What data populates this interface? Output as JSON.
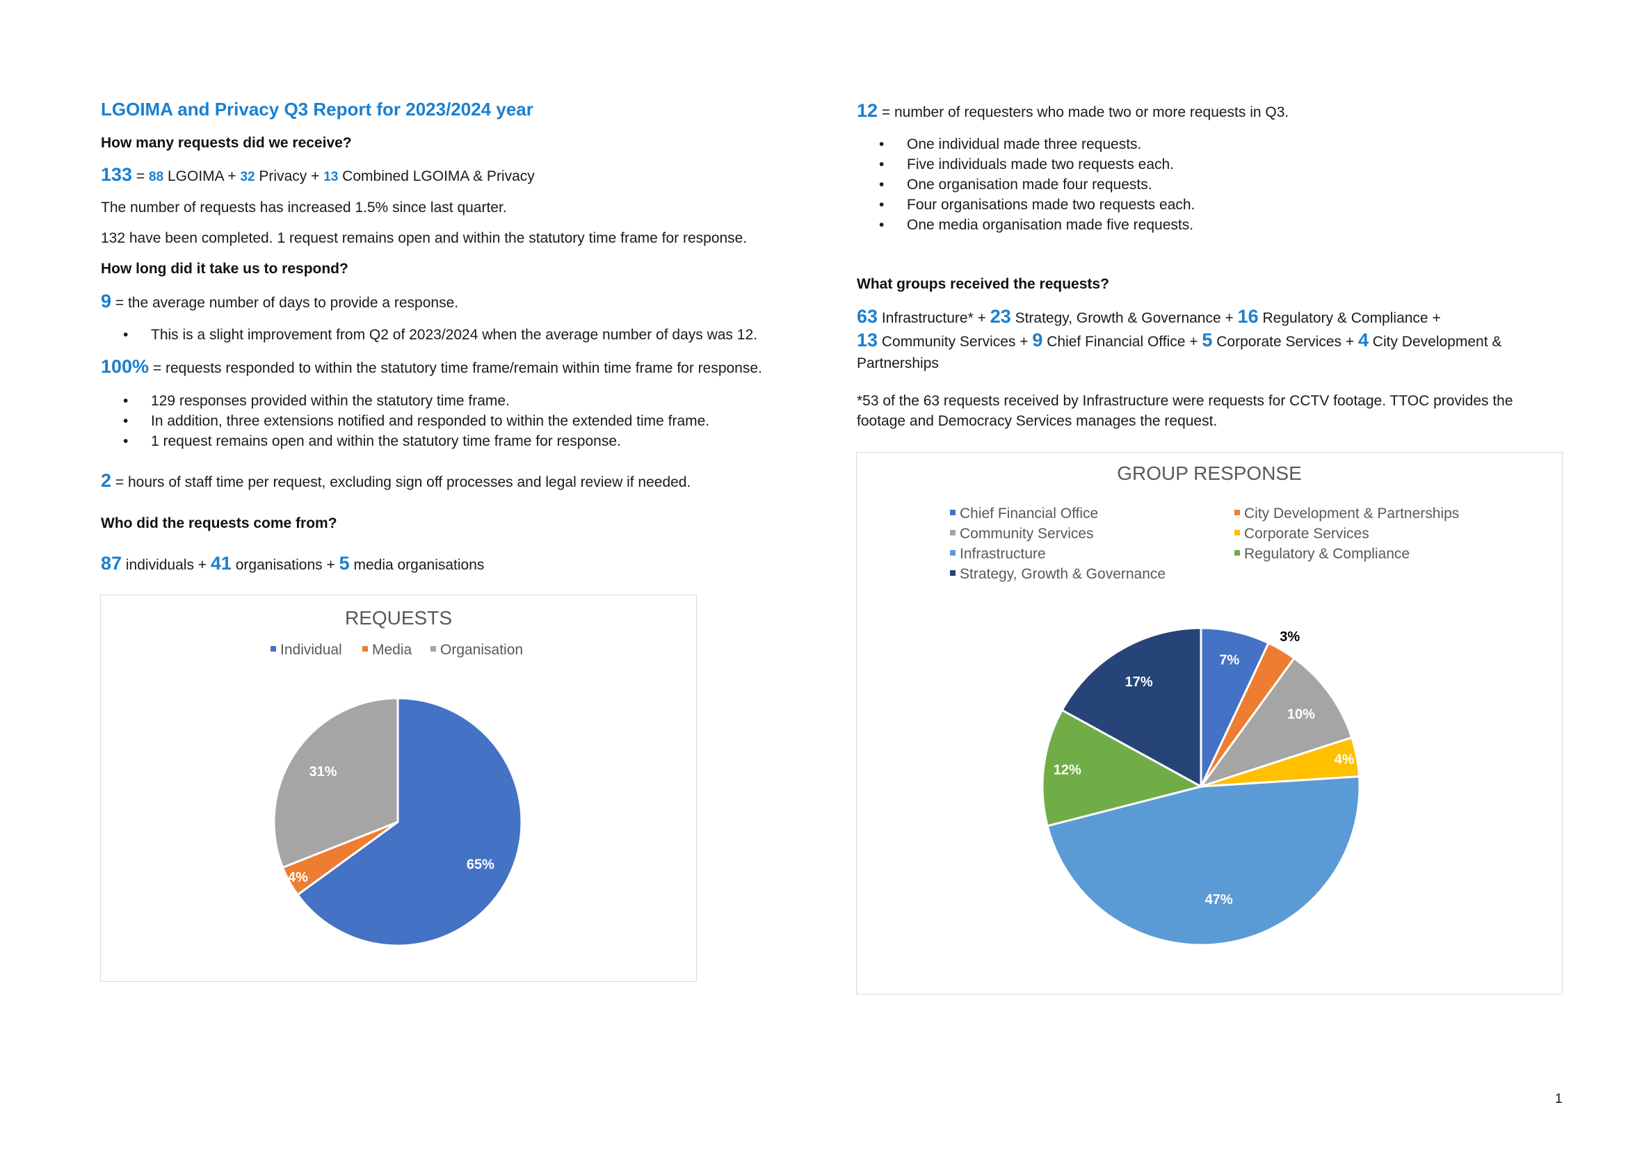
{
  "report_title": "LGOIMA and Privacy Q3 Report for 2023/2024 year",
  "q_received": {
    "heading": "How many requests did we receive?",
    "total": "133",
    "eq": " = ",
    "lgoima_n": "88",
    "lgoima_t": " LGOIMA + ",
    "privacy_n": "32",
    "privacy_t": " Privacy + ",
    "combined_n": "13",
    "combined_t": " Combined LGOIMA & Privacy",
    "increase_text": "The number of requests has increased 1.5% since last quarter.",
    "completed_text": "132 have been completed. 1 request remains open and within the statutory time frame for response."
  },
  "q_respond": {
    "heading": "How long did it take us to respond?",
    "avg_days_n": "9",
    "avg_days_t": " = the average number of days to provide a response.",
    "avg_bullets": [
      "This is a slight improvement from Q2 of 2023/2024 when the average number of days was 12."
    ],
    "pct_n": "100%",
    "pct_t": " = requests responded to within the statutory time frame/remain within time frame for response.",
    "pct_bullets": [
      "129 responses provided within the statutory time frame.",
      "In addition, three extensions notified and responded to within the extended time frame.",
      "1 request remains open and within the statutory time frame for response."
    ],
    "hours_n": "2",
    "hours_t": " = hours of staff time per request, excluding sign off processes and legal review if needed."
  },
  "q_from": {
    "heading": "Who did the requests come from?",
    "ind_n": "87",
    "ind_t": " individuals + ",
    "org_n": "41",
    "org_t": " organisations + ",
    "media_n": "5",
    "media_t": " media organisations"
  },
  "repeat": {
    "n": "12",
    "t": " = number of requesters who made two or more requests in Q3.",
    "bullets": [
      "One individual made three requests.",
      "Five individuals made two requests each.",
      "One organisation made four requests.",
      "Four organisations made two requests each.",
      "One media organisation made five requests."
    ]
  },
  "groups": {
    "heading": "What groups received the requests?",
    "g1_n": "63",
    "g1_t": " Infrastructure* + ",
    "g2_n": "23",
    "g2_t": " Strategy, Growth & Governance + ",
    "g3_n": "16",
    "g3_t": " Regulatory & Compliance +",
    "g4_n": "13",
    "g4_t": " Community Services + ",
    "g5_n": "9",
    "g5_t": " Chief Financial Office + ",
    "g6_n": "5",
    "g6_t": " Corporate Services + ",
    "g7_n": "4",
    "g7_t": " City Development &",
    "g7_cont": "Partnerships",
    "note_line1": "*53 of the 63 requests received by Infrastructure were requests for CCTV footage. TTOC provides the",
    "note_line2": "footage and Democracy Services manages the request."
  },
  "page_number": "1",
  "colors": {
    "accent": "#1a7fcf",
    "individual": "#4472c4",
    "media": "#ed7d31",
    "organisation": "#a5a5a5"
  },
  "chart_data": [
    {
      "type": "pie",
      "title": "REQUESTS",
      "categories": [
        "Individual",
        "Media",
        "Organisation"
      ],
      "values": [
        65,
        4,
        31
      ],
      "labels": [
        "65%",
        "4%",
        "31%"
      ],
      "colors": [
        "#4472c4",
        "#ed7d31",
        "#a5a5a5"
      ],
      "label_colors": [
        "#ffffff",
        "#ffffff",
        "#ffffff"
      ],
      "legend_position": "top"
    },
    {
      "type": "pie",
      "title": "GROUP RESPONSE",
      "categories": [
        "Chief Financial Office",
        "City Development & Partnerships",
        "Community Services",
        "Corporate Services",
        "Infrastructure",
        "Regulatory & Compliance",
        "Strategy, Growth & Governance"
      ],
      "values": [
        7,
        3,
        10,
        4,
        47,
        12,
        17
      ],
      "labels": [
        "7%",
        "3%",
        "10%",
        "4%",
        "47%",
        "12%",
        "17%"
      ],
      "colors": [
        "#4472c4",
        "#ed7d31",
        "#a5a5a5",
        "#ffc000",
        "#5b9bd5",
        "#70ad47",
        "#264478"
      ],
      "label_colors": [
        "#ffffff",
        "#000000",
        "#ffffff",
        "#ffffff",
        "#ffffff",
        "#ffffff",
        "#ffffff"
      ],
      "legend_position": "top"
    }
  ]
}
